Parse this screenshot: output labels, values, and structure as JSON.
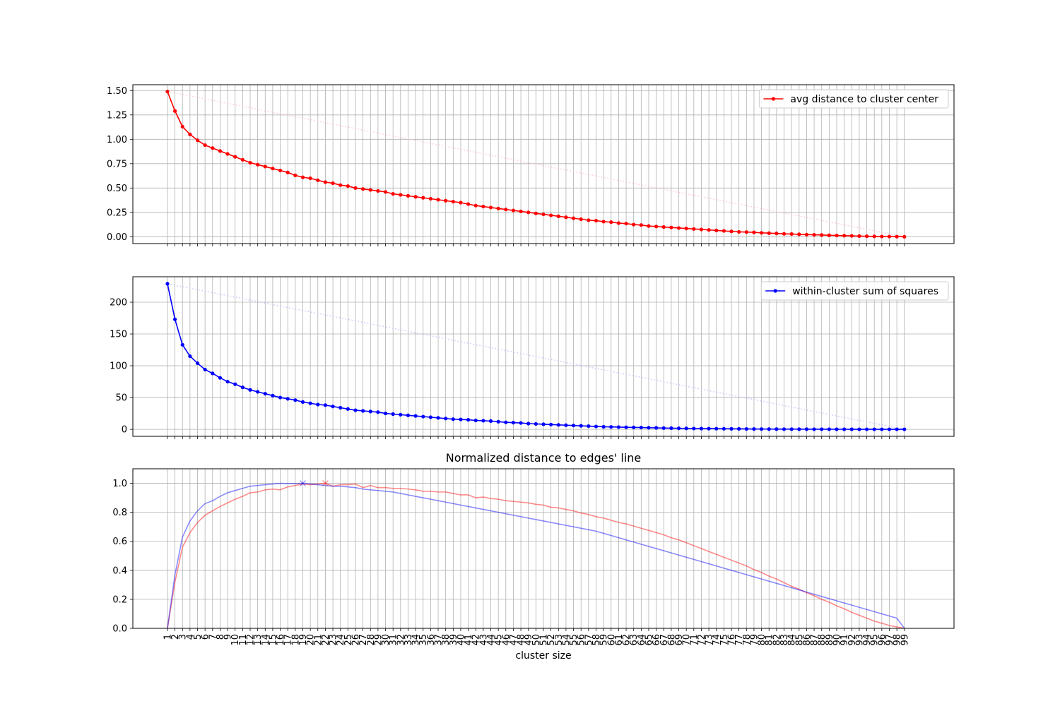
{
  "chart_data": [
    {
      "type": "line",
      "title": "",
      "xlabel": "",
      "ylabel": "",
      "ylim": [
        -0.07,
        1.56
      ],
      "yticks": [
        "0.00",
        "0.25",
        "0.50",
        "0.75",
        "1.00",
        "1.25",
        "1.50"
      ],
      "grid": true,
      "legend_position": "top-right",
      "x": [
        1,
        2,
        3,
        4,
        5,
        6,
        7,
        8,
        9,
        10,
        11,
        12,
        13,
        14,
        15,
        16,
        17,
        18,
        19,
        20,
        21,
        22,
        23,
        24,
        25,
        26,
        27,
        28,
        29,
        30,
        31,
        32,
        33,
        34,
        35,
        36,
        37,
        38,
        39,
        40,
        41,
        42,
        43,
        44,
        45,
        46,
        47,
        48,
        49,
        50,
        51,
        52,
        53,
        54,
        55,
        56,
        57,
        58,
        59,
        60,
        61,
        62,
        63,
        64,
        65,
        66,
        67,
        68,
        69,
        70,
        71,
        72,
        73,
        74,
        75,
        76,
        77,
        78,
        79,
        80,
        81,
        82,
        83,
        84,
        85,
        86,
        87,
        88,
        89,
        90,
        91,
        92,
        93,
        94,
        95,
        96,
        97,
        98,
        99
      ],
      "series": [
        {
          "name": "avg distance to cluster center",
          "color": "#ff0000",
          "marker": "dot",
          "values": [
            1.49,
            1.29,
            1.13,
            1.05,
            0.99,
            0.94,
            0.91,
            0.88,
            0.85,
            0.82,
            0.79,
            0.76,
            0.74,
            0.72,
            0.7,
            0.68,
            0.66,
            0.63,
            0.61,
            0.6,
            0.58,
            0.56,
            0.55,
            0.53,
            0.52,
            0.5,
            0.49,
            0.48,
            0.47,
            0.46,
            0.44,
            0.43,
            0.42,
            0.41,
            0.4,
            0.39,
            0.38,
            0.37,
            0.36,
            0.35,
            0.335,
            0.32,
            0.31,
            0.3,
            0.29,
            0.28,
            0.27,
            0.26,
            0.25,
            0.24,
            0.23,
            0.22,
            0.21,
            0.2,
            0.19,
            0.18,
            0.17,
            0.165,
            0.155,
            0.15,
            0.14,
            0.135,
            0.125,
            0.12,
            0.11,
            0.105,
            0.1,
            0.095,
            0.09,
            0.085,
            0.08,
            0.075,
            0.07,
            0.065,
            0.06,
            0.055,
            0.05,
            0.048,
            0.045,
            0.04,
            0.037,
            0.034,
            0.03,
            0.028,
            0.025,
            0.022,
            0.02,
            0.018,
            0.015,
            0.013,
            0.011,
            0.009,
            0.007,
            0.005,
            0.004,
            0.003,
            0.002,
            0.001,
            0.0
          ]
        }
      ],
      "reference_line": {
        "from": [
          1,
          1.49
        ],
        "to": [
          99,
          0.0
        ],
        "color": "#ffc0cb",
        "style": "dotted"
      }
    },
    {
      "type": "line",
      "title": "",
      "xlabel": "",
      "ylabel": "",
      "ylim": [
        -11,
        240
      ],
      "yticks": [
        "0",
        "50",
        "100",
        "150",
        "200"
      ],
      "grid": true,
      "legend_position": "top-right",
      "x": [
        1,
        2,
        3,
        4,
        5,
        6,
        7,
        8,
        9,
        10,
        11,
        12,
        13,
        14,
        15,
        16,
        17,
        18,
        19,
        20,
        21,
        22,
        23,
        24,
        25,
        26,
        27,
        28,
        29,
        30,
        31,
        32,
        33,
        34,
        35,
        36,
        37,
        38,
        39,
        40,
        41,
        42,
        43,
        44,
        45,
        46,
        47,
        48,
        49,
        50,
        51,
        52,
        53,
        54,
        55,
        56,
        57,
        58,
        59,
        60,
        61,
        62,
        63,
        64,
        65,
        66,
        67,
        68,
        69,
        70,
        71,
        72,
        73,
        74,
        75,
        76,
        77,
        78,
        79,
        80,
        81,
        82,
        83,
        84,
        85,
        86,
        87,
        88,
        89,
        90,
        91,
        92,
        93,
        94,
        95,
        96,
        97,
        98,
        99
      ],
      "series": [
        {
          "name": "within-cluster sum of squares",
          "color": "#0000ff",
          "marker": "dot",
          "values": [
            229,
            173,
            133,
            115,
            104,
            94,
            88,
            81,
            75,
            71,
            66,
            62,
            59,
            56,
            53,
            50,
            48,
            46,
            43,
            41,
            39,
            38,
            36,
            34,
            32,
            30,
            29,
            28,
            27,
            25,
            24,
            23,
            22,
            21,
            20,
            19,
            18,
            17,
            16,
            15.5,
            15,
            14,
            13.5,
            13,
            12,
            11,
            10.5,
            10,
            9,
            8.5,
            8,
            7.5,
            7,
            6.5,
            6,
            5.5,
            5,
            4.5,
            4,
            3.8,
            3.5,
            3.2,
            3,
            2.8,
            2.5,
            2.3,
            2,
            1.8,
            1.6,
            1.5,
            1.3,
            1.2,
            1.1,
            1,
            0.9,
            0.8,
            0.7,
            0.6,
            0.5,
            0.45,
            0.4,
            0.35,
            0.3,
            0.28,
            0.25,
            0.22,
            0.2,
            0.18,
            0.15,
            0.12,
            0.1,
            0.08,
            0.06,
            0.05,
            0.04,
            0.03,
            0.02,
            0.01,
            0.0
          ]
        }
      ],
      "reference_line": {
        "from": [
          1,
          229
        ],
        "to": [
          99,
          0.0
        ],
        "color": "#c0c0ff",
        "style": "dotted"
      }
    },
    {
      "type": "line",
      "title": "Normalized distance to edges' line",
      "xlabel": "cluster size",
      "ylabel": "",
      "ylim": [
        0,
        1.1
      ],
      "yticks": [
        "0.0",
        "0.2",
        "0.4",
        "0.6",
        "0.8",
        "1.0"
      ],
      "grid": true,
      "x": [
        1,
        2,
        3,
        4,
        5,
        6,
        7,
        8,
        9,
        10,
        11,
        12,
        13,
        14,
        15,
        16,
        17,
        18,
        19,
        20,
        21,
        22,
        23,
        24,
        25,
        26,
        27,
        28,
        29,
        30,
        31,
        32,
        33,
        34,
        35,
        36,
        37,
        38,
        39,
        40,
        41,
        42,
        43,
        44,
        45,
        46,
        47,
        48,
        49,
        50,
        51,
        52,
        53,
        54,
        55,
        56,
        57,
        58,
        59,
        60,
        61,
        62,
        63,
        64,
        65,
        66,
        67,
        68,
        69,
        70,
        71,
        72,
        73,
        74,
        75,
        76,
        77,
        78,
        79,
        80,
        81,
        82,
        83,
        84,
        85,
        86,
        87,
        88,
        89,
        90,
        91,
        92,
        93,
        94,
        95,
        96,
        97,
        98,
        99
      ],
      "xtick_labels": [
        "1",
        "2",
        "3",
        "4",
        "5",
        "6",
        "7",
        "8",
        "9",
        "10",
        "11",
        "12",
        "13",
        "14",
        "15",
        "16",
        "17",
        "18",
        "19",
        "20",
        "21",
        "22",
        "23",
        "24",
        "25",
        "26",
        "27",
        "28",
        "29",
        "30",
        "31",
        "32",
        "33",
        "34",
        "35",
        "36",
        "37",
        "38",
        "39",
        "40",
        "41",
        "42",
        "43",
        "44",
        "45",
        "46",
        "47",
        "48",
        "49",
        "50",
        "51",
        "52",
        "53",
        "54",
        "55",
        "56",
        "57",
        "58",
        "59",
        "60",
        "61",
        "62",
        "63",
        "64",
        "65",
        "66",
        "67",
        "68",
        "69",
        "70",
        "71",
        "72",
        "73",
        "74",
        "75",
        "76",
        "77",
        "78",
        "79",
        "80",
        "81",
        "82",
        "83",
        "84",
        "85",
        "86",
        "87",
        "88",
        "89",
        "90",
        "91",
        "92",
        "93",
        "94",
        "95",
        "96",
        "97",
        "98",
        "99"
      ],
      "series": [
        {
          "color": "#ff0000",
          "opacity": 0.45,
          "max_marker_x": 22,
          "values": [
            0.0,
            0.32,
            0.56,
            0.66,
            0.73,
            0.78,
            0.81,
            0.84,
            0.865,
            0.89,
            0.91,
            0.935,
            0.94,
            0.955,
            0.96,
            0.955,
            0.975,
            0.985,
            0.995,
            0.99,
            0.995,
            1.0,
            0.98,
            0.99,
            0.99,
            0.995,
            0.97,
            0.985,
            0.97,
            0.97,
            0.965,
            0.965,
            0.96,
            0.955,
            0.945,
            0.945,
            0.94,
            0.94,
            0.93,
            0.92,
            0.92,
            0.9,
            0.905,
            0.895,
            0.89,
            0.88,
            0.875,
            0.87,
            0.865,
            0.855,
            0.85,
            0.835,
            0.83,
            0.82,
            0.81,
            0.795,
            0.785,
            0.77,
            0.76,
            0.745,
            0.73,
            0.72,
            0.705,
            0.69,
            0.675,
            0.66,
            0.645,
            0.625,
            0.61,
            0.59,
            0.57,
            0.55,
            0.53,
            0.51,
            0.49,
            0.47,
            0.45,
            0.43,
            0.405,
            0.385,
            0.36,
            0.34,
            0.315,
            0.29,
            0.27,
            0.245,
            0.225,
            0.2,
            0.18,
            0.155,
            0.135,
            0.11,
            0.09,
            0.07,
            0.05,
            0.035,
            0.02,
            0.01,
            0.0
          ]
        },
        {
          "color": "#0000ff",
          "opacity": 0.45,
          "max_marker_x": 19,
          "values": [
            0.0,
            0.37,
            0.63,
            0.74,
            0.81,
            0.86,
            0.88,
            0.91,
            0.935,
            0.95,
            0.965,
            0.98,
            0.985,
            0.99,
            0.995,
            1.0,
            0.998,
            0.998,
            1.0,
            0.995,
            0.99,
            0.985,
            0.98,
            0.98,
            0.975,
            0.97,
            0.96,
            0.955,
            0.95,
            0.945,
            0.94,
            0.93,
            0.92,
            0.91,
            0.9,
            0.89,
            0.88,
            0.87,
            0.86,
            0.85,
            0.84,
            0.83,
            0.82,
            0.81,
            0.8,
            0.79,
            0.78,
            0.77,
            0.76,
            0.75,
            0.74,
            0.73,
            0.72,
            0.71,
            0.7,
            0.69,
            0.68,
            0.67,
            0.655,
            0.64,
            0.625,
            0.61,
            0.595,
            0.58,
            0.565,
            0.55,
            0.535,
            0.52,
            0.505,
            0.49,
            0.475,
            0.46,
            0.445,
            0.43,
            0.415,
            0.4,
            0.385,
            0.37,
            0.355,
            0.34,
            0.325,
            0.31,
            0.295,
            0.28,
            0.265,
            0.25,
            0.235,
            0.22,
            0.205,
            0.19,
            0.175,
            0.16,
            0.145,
            0.13,
            0.115,
            0.1,
            0.085,
            0.07,
            0.0
          ]
        }
      ]
    }
  ]
}
